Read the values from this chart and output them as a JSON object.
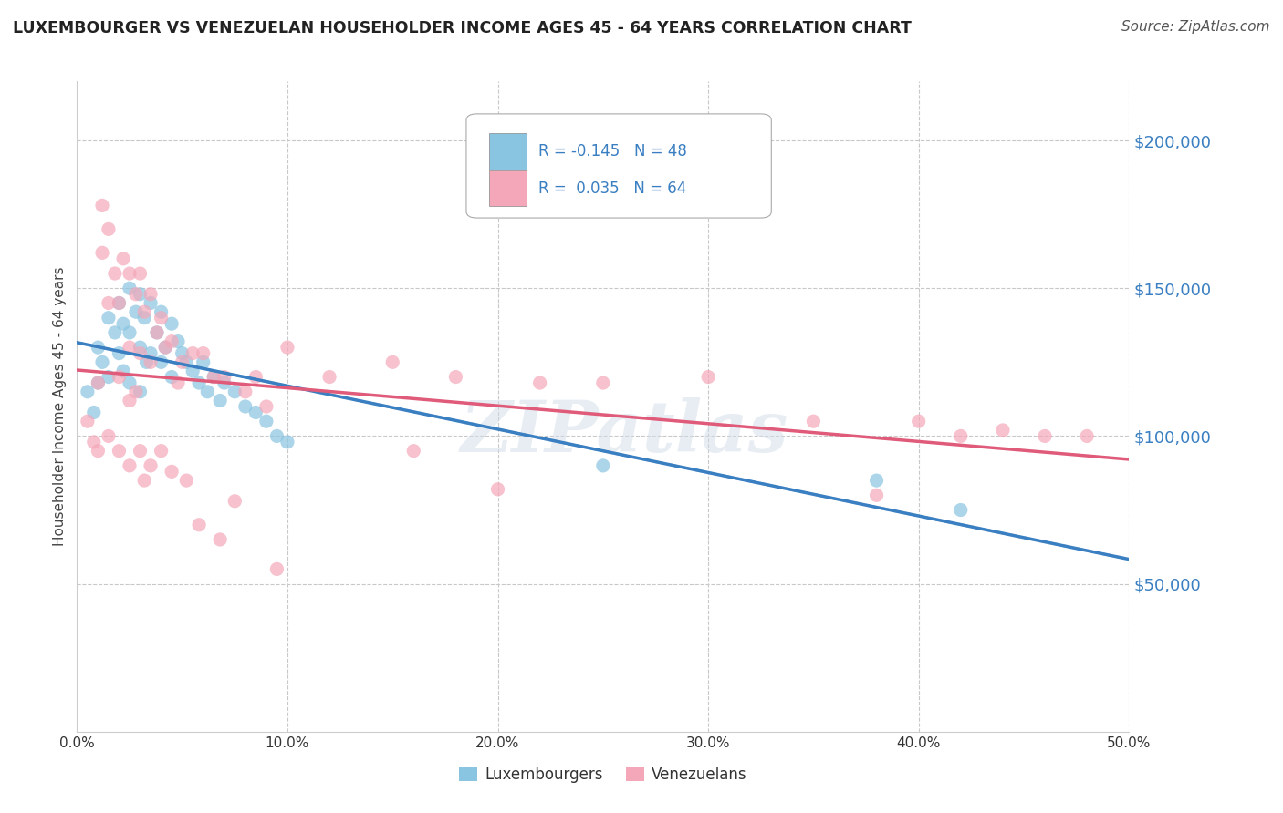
{
  "title": "LUXEMBOURGER VS VENEZUELAN HOUSEHOLDER INCOME AGES 45 - 64 YEARS CORRELATION CHART",
  "source": "Source: ZipAtlas.com",
  "ylabel": "Householder Income Ages 45 - 64 years",
  "xlim": [
    0.0,
    0.5
  ],
  "ylim": [
    0,
    220000
  ],
  "yticks": [
    0,
    50000,
    100000,
    150000,
    200000
  ],
  "ytick_labels": [
    "",
    "$50,000",
    "$100,000",
    "$150,000",
    "$200,000"
  ],
  "xticks": [
    0.0,
    0.1,
    0.2,
    0.3,
    0.4,
    0.5
  ],
  "xtick_labels": [
    "0.0%",
    "10.0%",
    "20.0%",
    "30.0%",
    "40.0%",
    "50.0%"
  ],
  "lux_color": "#89c4e1",
  "ven_color": "#f4a7b9",
  "lux_line_color": "#3a7fc1",
  "ven_line_color": "#e05a7a",
  "lux_R": -0.145,
  "lux_N": 48,
  "ven_R": 0.035,
  "ven_N": 64,
  "watermark": "ZIPatlas",
  "grid_color": "#c8c8c8",
  "lux_scatter_x": [
    0.005,
    0.008,
    0.01,
    0.01,
    0.012,
    0.015,
    0.015,
    0.018,
    0.02,
    0.02,
    0.022,
    0.022,
    0.025,
    0.025,
    0.025,
    0.028,
    0.03,
    0.03,
    0.03,
    0.032,
    0.033,
    0.035,
    0.035,
    0.038,
    0.04,
    0.04,
    0.042,
    0.045,
    0.045,
    0.048,
    0.05,
    0.052,
    0.055,
    0.058,
    0.06,
    0.062,
    0.065,
    0.068,
    0.07,
    0.075,
    0.08,
    0.085,
    0.09,
    0.095,
    0.1,
    0.25,
    0.38,
    0.42
  ],
  "lux_scatter_y": [
    115000,
    108000,
    130000,
    118000,
    125000,
    140000,
    120000,
    135000,
    145000,
    128000,
    138000,
    122000,
    150000,
    135000,
    118000,
    142000,
    148000,
    130000,
    115000,
    140000,
    125000,
    145000,
    128000,
    135000,
    142000,
    125000,
    130000,
    138000,
    120000,
    132000,
    128000,
    125000,
    122000,
    118000,
    125000,
    115000,
    120000,
    112000,
    118000,
    115000,
    110000,
    108000,
    105000,
    100000,
    98000,
    90000,
    85000,
    75000
  ],
  "ven_scatter_x": [
    0.005,
    0.008,
    0.01,
    0.01,
    0.012,
    0.012,
    0.015,
    0.015,
    0.015,
    0.018,
    0.02,
    0.02,
    0.02,
    0.022,
    0.025,
    0.025,
    0.025,
    0.025,
    0.028,
    0.028,
    0.03,
    0.03,
    0.03,
    0.032,
    0.032,
    0.035,
    0.035,
    0.035,
    0.038,
    0.04,
    0.04,
    0.042,
    0.045,
    0.045,
    0.048,
    0.05,
    0.052,
    0.055,
    0.058,
    0.06,
    0.065,
    0.068,
    0.07,
    0.075,
    0.08,
    0.085,
    0.09,
    0.095,
    0.1,
    0.12,
    0.15,
    0.16,
    0.18,
    0.2,
    0.22,
    0.25,
    0.3,
    0.35,
    0.38,
    0.4,
    0.42,
    0.44,
    0.46,
    0.48
  ],
  "ven_scatter_y": [
    105000,
    98000,
    118000,
    95000,
    178000,
    162000,
    170000,
    145000,
    100000,
    155000,
    145000,
    120000,
    95000,
    160000,
    155000,
    130000,
    112000,
    90000,
    148000,
    115000,
    155000,
    128000,
    95000,
    142000,
    85000,
    148000,
    125000,
    90000,
    135000,
    140000,
    95000,
    130000,
    132000,
    88000,
    118000,
    125000,
    85000,
    128000,
    70000,
    128000,
    120000,
    65000,
    120000,
    78000,
    115000,
    120000,
    110000,
    55000,
    130000,
    120000,
    125000,
    95000,
    120000,
    82000,
    118000,
    118000,
    120000,
    105000,
    80000,
    105000,
    100000,
    102000,
    100000,
    100000
  ]
}
